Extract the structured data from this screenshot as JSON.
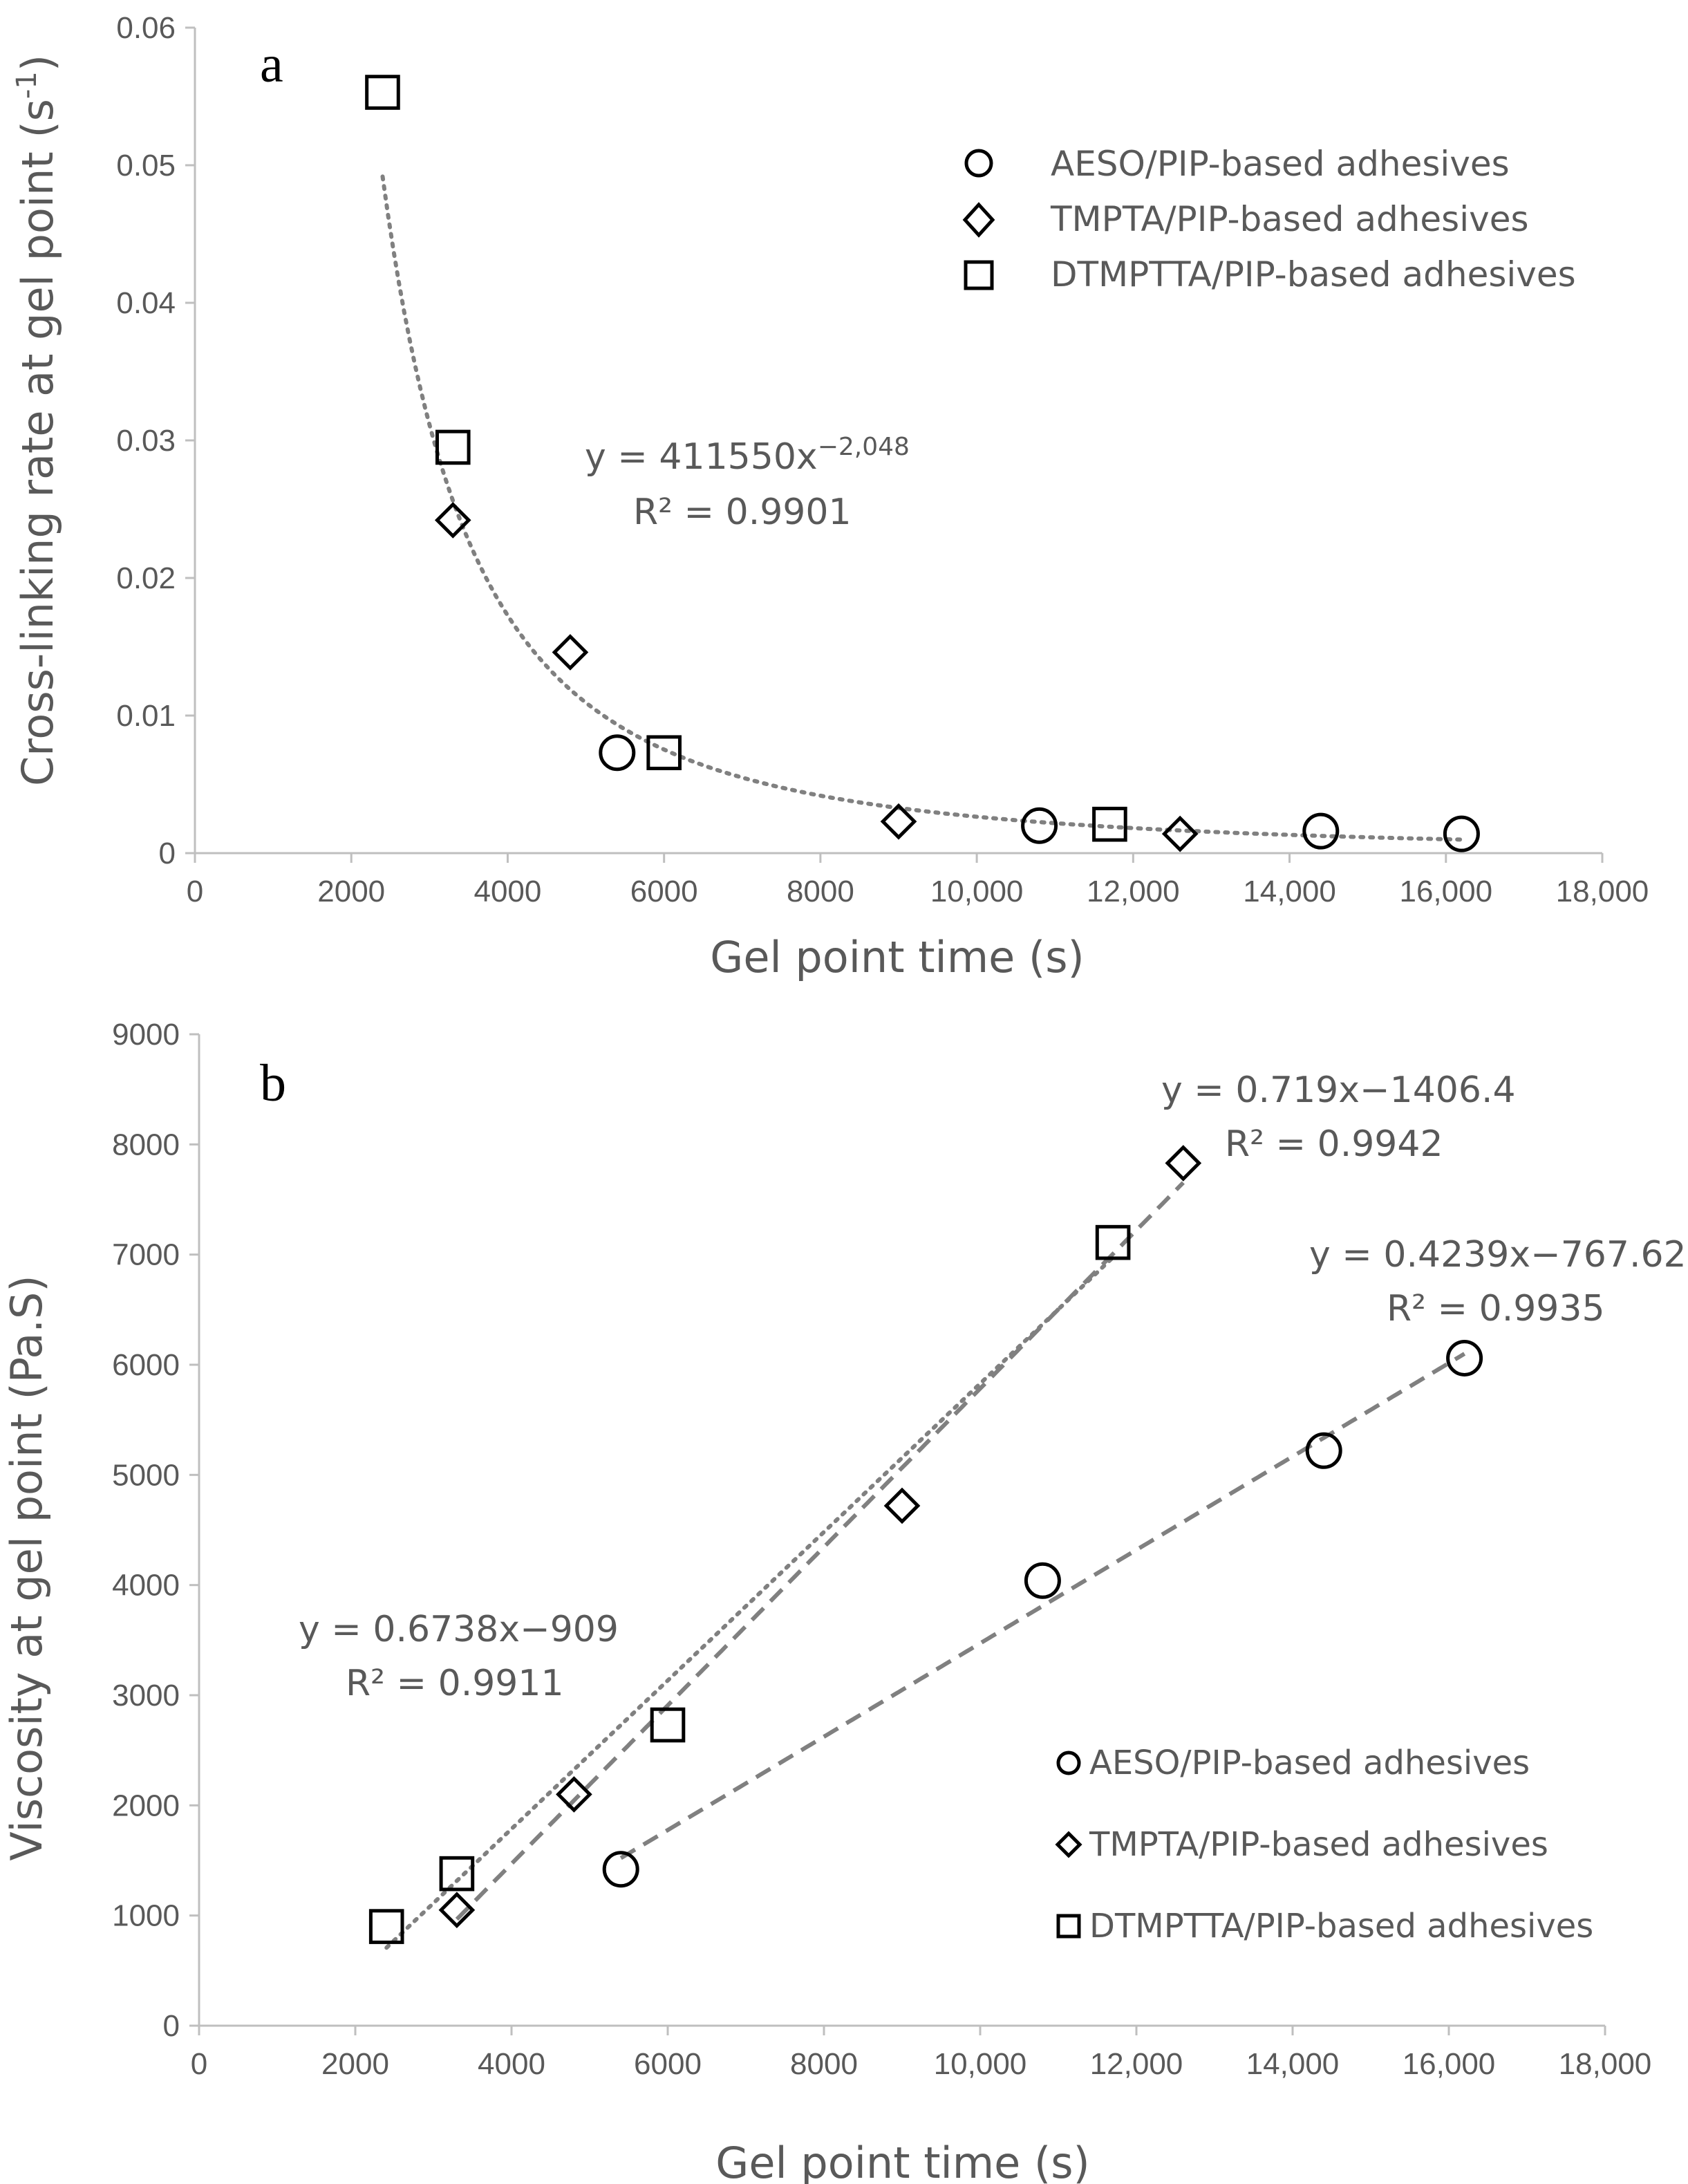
{
  "chart_data": [
    {
      "panel": "a",
      "type": "scatter",
      "xlabel": "Gel point time (s)",
      "ylabel": "Cross-linking rate at gel point (s",
      "ylabel_sup": "-1",
      "ylabel_close": ")",
      "xlim": [
        0,
        18000
      ],
      "ylim": [
        0,
        0.06
      ],
      "x_ticks": [
        0,
        2000,
        4000,
        6000,
        8000,
        10000,
        12000,
        14000,
        16000,
        18000
      ],
      "x_tick_labels": [
        "0",
        "2000",
        "4000",
        "6000",
        "8000",
        "10,000",
        "12,000",
        "14,000",
        "16,000",
        "18,000"
      ],
      "y_ticks": [
        0,
        0.01,
        0.02,
        0.03,
        0.04,
        0.05,
        0.06
      ],
      "y_tick_labels": [
        "0",
        "0.01",
        "0.02",
        "0.03",
        "0.04",
        "0.05",
        "0.06"
      ],
      "series": [
        {
          "name": "AESO/PIP-based adhesives",
          "marker": "circle",
          "x": [
            5400,
            10800,
            14400,
            16200
          ],
          "y": [
            0.0073,
            0.002,
            0.0016,
            0.0014
          ]
        },
        {
          "name": "TMPTA/PIP-based adhesives",
          "marker": "diamond",
          "x": [
            3300,
            4800,
            9000,
            12600
          ],
          "y": [
            0.0242,
            0.0146,
            0.0023,
            0.0014
          ]
        },
        {
          "name": "DTMPTTA/PIP-based adhesives",
          "marker": "square",
          "x": [
            2400,
            3300,
            6000,
            11700
          ],
          "y": [
            0.0553,
            0.0295,
            0.0073,
            0.0021
          ]
        }
      ],
      "fits": [
        {
          "kind": "power",
          "a": 411550,
          "b": -2.048,
          "x_range": [
            2400,
            16200
          ],
          "style": "dotted",
          "equation_main": "y = 411550x",
          "equation_exp": "−2,048",
          "r2": "R² = 0.9901"
        }
      ],
      "legend_position": "top-right"
    },
    {
      "panel": "b",
      "type": "scatter",
      "xlabel": "Gel point time (s)",
      "ylabel": "Viscosity at gel point (Pa.S)",
      "xlim": [
        0,
        18000
      ],
      "ylim": [
        0,
        9000
      ],
      "x_ticks": [
        0,
        2000,
        4000,
        6000,
        8000,
        10000,
        12000,
        14000,
        16000,
        18000
      ],
      "x_tick_labels": [
        "0",
        "2000",
        "4000",
        "6000",
        "8000",
        "10,000",
        "12,000",
        "14,000",
        "16,000",
        "18,000"
      ],
      "y_ticks": [
        0,
        1000,
        2000,
        3000,
        4000,
        5000,
        6000,
        7000,
        8000,
        9000
      ],
      "y_tick_labels": [
        "0",
        "1000",
        "2000",
        "3000",
        "4000",
        "5000",
        "6000",
        "7000",
        "8000",
        "9000"
      ],
      "series": [
        {
          "name": "AESO/PIP-based adhesives",
          "marker": "circle",
          "x": [
            5400,
            10800,
            14400,
            16200
          ],
          "y": [
            1420,
            4040,
            5220,
            6060
          ]
        },
        {
          "name": "TMPTA/PIP-based adhesives",
          "marker": "diamond",
          "x": [
            3300,
            4800,
            9000,
            12600
          ],
          "y": [
            1050,
            2100,
            4720,
            7830
          ]
        },
        {
          "name": "DTMPTTA/PIP-based adhesives",
          "marker": "square",
          "x": [
            2400,
            3300,
            6000,
            11700
          ],
          "y": [
            900,
            1380,
            2730,
            7110
          ]
        }
      ],
      "fits": [
        {
          "kind": "linear",
          "slope": 0.4239,
          "intercept": -767.62,
          "x_range": [
            5400,
            16200
          ],
          "style": "dashed",
          "equation": "y = 0.4239x−767.62",
          "r2": "R² = 0.9935"
        },
        {
          "kind": "linear",
          "slope": 0.719,
          "intercept": -1406.4,
          "x_range": [
            3300,
            12600
          ],
          "style": "dashed",
          "equation": "y = 0.719x−1406.4",
          "r2": "R² = 0.9942"
        },
        {
          "kind": "linear",
          "slope": 0.6738,
          "intercept": -909,
          "x_range": [
            2400,
            11700
          ],
          "style": "dotted",
          "equation": "y = 0.6738x−909",
          "r2": "R² = 0.9911"
        }
      ],
      "legend_position": "bottom-right"
    }
  ]
}
